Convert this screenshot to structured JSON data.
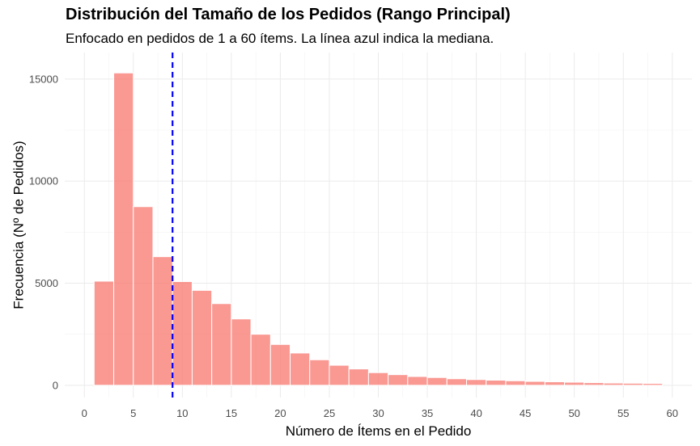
{
  "chart_data": {
    "type": "bar",
    "title": "Distribución del Tamaño de los Pedidos (Rango Principal)",
    "subtitle": "Enfocado en pedidos de 1 a 60 ítems. La línea azul indica la mediana.",
    "xlabel": "Número de Ítems en el Pedido",
    "ylabel": "Frecuencia (Nº de Pedidos)",
    "xlim": [
      -2,
      62
    ],
    "ylim": [
      -600,
      16300
    ],
    "x_ticks": [
      0,
      5,
      10,
      15,
      20,
      25,
      30,
      35,
      40,
      45,
      50,
      55,
      60
    ],
    "y_ticks": [
      0,
      5000,
      10000,
      15000
    ],
    "bin_width": 2,
    "bins": [
      {
        "start": 1,
        "end": 3,
        "count": 5100
      },
      {
        "start": 3,
        "end": 5,
        "count": 15300
      },
      {
        "start": 5,
        "end": 7,
        "count": 8750
      },
      {
        "start": 7,
        "end": 9,
        "count": 6300
      },
      {
        "start": 9,
        "end": 11,
        "count": 5080
      },
      {
        "start": 11,
        "end": 13,
        "count": 4650
      },
      {
        "start": 13,
        "end": 15,
        "count": 4000
      },
      {
        "start": 15,
        "end": 17,
        "count": 3250
      },
      {
        "start": 17,
        "end": 19,
        "count": 2500
      },
      {
        "start": 19,
        "end": 21,
        "count": 2000
      },
      {
        "start": 21,
        "end": 23,
        "count": 1580
      },
      {
        "start": 23,
        "end": 25,
        "count": 1250
      },
      {
        "start": 25,
        "end": 27,
        "count": 980
      },
      {
        "start": 27,
        "end": 29,
        "count": 800
      },
      {
        "start": 29,
        "end": 31,
        "count": 620
      },
      {
        "start": 31,
        "end": 33,
        "count": 520
      },
      {
        "start": 33,
        "end": 35,
        "count": 430
      },
      {
        "start": 35,
        "end": 37,
        "count": 380
      },
      {
        "start": 37,
        "end": 39,
        "count": 320
      },
      {
        "start": 39,
        "end": 41,
        "count": 280
      },
      {
        "start": 41,
        "end": 43,
        "count": 250
      },
      {
        "start": 43,
        "end": 45,
        "count": 220
      },
      {
        "start": 45,
        "end": 47,
        "count": 190
      },
      {
        "start": 47,
        "end": 49,
        "count": 170
      },
      {
        "start": 49,
        "end": 51,
        "count": 150
      },
      {
        "start": 51,
        "end": 53,
        "count": 130
      },
      {
        "start": 53,
        "end": 55,
        "count": 110
      },
      {
        "start": 55,
        "end": 57,
        "count": 100
      },
      {
        "start": 57,
        "end": 59,
        "count": 90
      }
    ],
    "median": 9,
    "bar_color": "#f8766d",
    "bar_opacity": 0.75,
    "median_line_color": "#0000ff",
    "grid": true,
    "legend": "none"
  }
}
